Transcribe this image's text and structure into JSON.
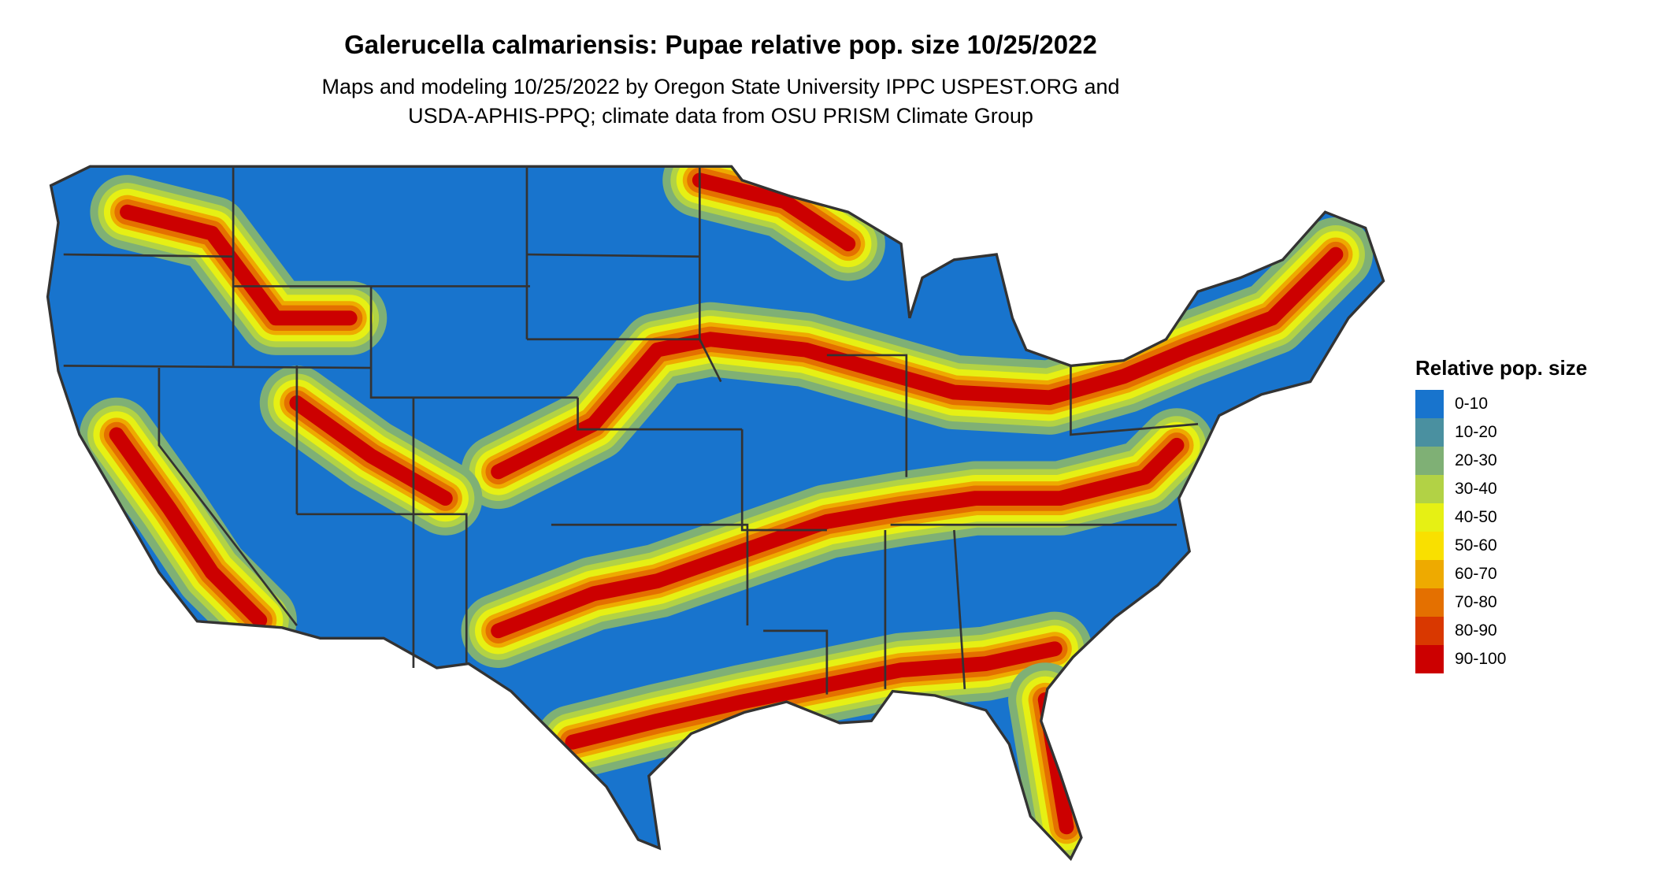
{
  "title": "Galerucella calmariensis: Pupae relative pop. size 10/25/2022",
  "subtitle_lines": [
    "Maps and modeling 10/25/2022 by Oregon State University IPPC USPEST.ORG and",
    "USDA-APHIS-PPQ; climate data from OSU PRISM Climate Group"
  ],
  "legend": {
    "title": "Relative pop. size",
    "items": [
      {
        "label": "0-10",
        "color": "#1874cd"
      },
      {
        "label": "10-20",
        "color": "#4a90a0"
      },
      {
        "label": "20-30",
        "color": "#7fb075"
      },
      {
        "label": "30-40",
        "color": "#b2d245"
      },
      {
        "label": "40-50",
        "color": "#e6f014"
      },
      {
        "label": "50-60",
        "color": "#f9e000"
      },
      {
        "label": "60-70",
        "color": "#eeaa00"
      },
      {
        "label": "70-80",
        "color": "#e47000"
      },
      {
        "label": "80-90",
        "color": "#d93800"
      },
      {
        "label": "90-100",
        "color": "#cc0000"
      }
    ]
  },
  "map": {
    "region": "Contiguous United States",
    "border_color": "#333333"
  }
}
